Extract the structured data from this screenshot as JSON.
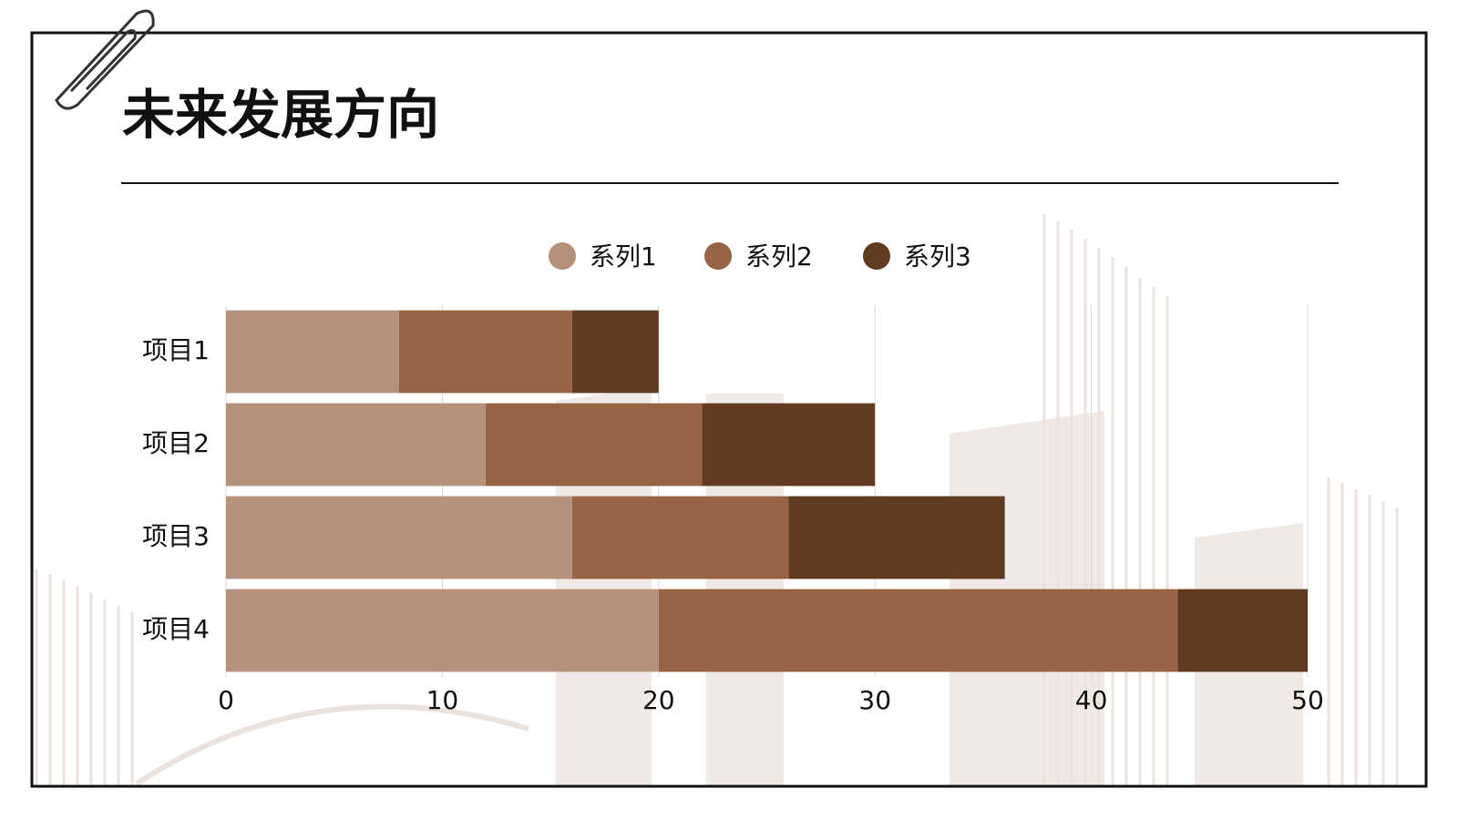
{
  "chart_data": {
    "type": "stacked-bar-horizontal",
    "title": "未来发展方向",
    "categories": [
      "项目1",
      "项目2",
      "项目3",
      "项目4"
    ],
    "series": [
      {
        "name": "系列1",
        "color": "#b4917a",
        "values": [
          8,
          12,
          16,
          20
        ]
      },
      {
        "name": "系列2",
        "color": "#976345",
        "values": [
          8,
          10,
          10,
          24
        ]
      },
      {
        "name": "系列3",
        "color": "#603b22",
        "values": [
          4,
          8,
          10,
          6
        ]
      }
    ],
    "xlim": [
      0,
      50
    ],
    "xticks": [
      0,
      10,
      20,
      30,
      40,
      50
    ],
    "grid": true,
    "legend": "top"
  }
}
